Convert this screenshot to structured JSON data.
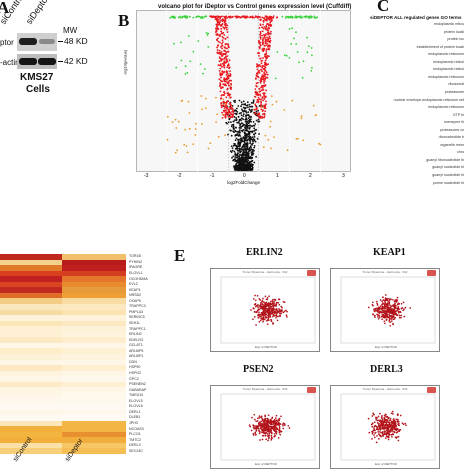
{
  "panel_a": {
    "letter": "A",
    "lanes": [
      "siControl",
      "siDeptor"
    ],
    "mw_label": "MW",
    "row_labels": [
      "ptor",
      "-actin"
    ],
    "mw_values": [
      "48 KD",
      "42 KD"
    ],
    "cell_line": "KMS27",
    "cell_word": "Cells"
  },
  "panel_b": {
    "letter": "B",
    "title": "volcano plot for iDeptor vs Control genes expression level (Cuffdiff)",
    "ylabel": "-log10(pvalue)",
    "xlabel": "log2FoldChange",
    "x_ticks": [
      "-3",
      "-2",
      "-1",
      "0",
      "1",
      "2",
      "3"
    ],
    "colors": {
      "black": "#111111",
      "red": "#e8191f",
      "green": "#3ad13a",
      "orange": "#e89b2a"
    }
  },
  "panel_c": {
    "letter": "C",
    "title": "siDEPTOR ALL regulated genes GO terms",
    "terms": [
      "endoplasmic reticu",
      "protein locali",
      "protein loc",
      "establishment of protein locali",
      "endoplasmic reticulum",
      "endoplasmic reticul",
      "endoplasmic reticul",
      "endoplasmic reticulum",
      "ribosomal",
      "proteasome",
      "nuclear envelope-endoplasmic reticulum net",
      "endoplasmic reticulum",
      "GTP bi",
      "coenzyme bi",
      "proteasome co",
      "ribonucleotide b",
      "organelle mem",
      "chro",
      "guanyl ribonucleotide bi",
      "guanyl nucleotide bi",
      "guanyl nucleotide bi",
      "purine nucleotide bi"
    ]
  },
  "panel_d": {
    "letter": "D",
    "x_labels": [
      "siControl",
      "siDeptor"
    ],
    "genes": [
      "TOR1B",
      "PYHIN2",
      "IPAGRE",
      "ELOVL1",
      "OCOHDMA",
      "EVL2",
      "KEAP1",
      "NRSD2",
      "CKAP5",
      "TRAPPC3",
      "PMPLA3",
      "SERINC5",
      "SEH1L",
      "TRAPPC1",
      "ERLIN2",
      "KDELR3",
      "GCLAT1",
      "ARL6IP5",
      "ARL6IP1",
      "DDN",
      "HSP90",
      "HSPG2",
      "GPC2",
      "PSENEN2",
      "GABARAP",
      "TMED10",
      "ELOVL5",
      "ELOVL6",
      "DERL1",
      "DLEB1",
      "JPH3",
      "NCOAS3",
      "PLCG1",
      "TMTC2",
      "DERL3",
      "SEC24C"
    ],
    "col_colors": {
      "left": [
        "#c0281e",
        "#f2d18a",
        "#e07a2a",
        "#d9401e",
        "#c02020",
        "#d94520",
        "#c02820",
        "#e06d27",
        "#f3cd86",
        "#fbe7bd",
        "#f6dca0",
        "#fdf3dd",
        "#fbe6b8",
        "#fdf0d3",
        "#fdf0d5",
        "#fde9c4",
        "#fef6e6",
        "#fdeec9",
        "#fdf2d8",
        "#fef6e6",
        "#fde8c1",
        "#fef3df",
        "#fef6e6",
        "#fdebc7",
        "#fef5e3",
        "#fef7e9",
        "#fef8ec",
        "#fefaf1",
        "#fef7e9",
        "#fefaf1",
        "#fde6b9",
        "#f2b03a",
        "#f3b440",
        "#f2b03a",
        "#fbe1a8",
        "#f8cf79"
      ],
      "right": [
        "#f1c06a",
        "#b81b1b",
        "#c0201d",
        "#d23e1f",
        "#e3762a",
        "#e98a2f",
        "#e69a39",
        "#ee9f36",
        "#f9dca4",
        "#fce9c2",
        "#fbe4b2",
        "#fef2da",
        "#fde9c1",
        "#fdf1d7",
        "#fef3dc",
        "#fdedcd",
        "#fef7e8",
        "#fef0d2",
        "#fef3de",
        "#fef7e8",
        "#fdefd0",
        "#fef6e4",
        "#fef8ec",
        "#fef0d3",
        "#fef6e7",
        "#fef8ed",
        "#fef9ef",
        "#fefaf3",
        "#fef8ec",
        "#fefaf3",
        "#f3b645",
        "#f3b645",
        "#e89030",
        "#f1ae3c",
        "#f7c765",
        "#f5be55"
      ]
    }
  },
  "panel_e": {
    "letter": "E",
    "plots": [
      {
        "title": "ERLIN2",
        "subtitle": "Tumor Myeloma - Harmonia - 542",
        "ylabel": "Exp of ERLIN2",
        "xlabel": "Exp of DEPTOR"
      },
      {
        "title": "KEAP1",
        "subtitle": "Tumor Myeloma - Harmonia - 542",
        "ylabel": "Exp of KEAP1",
        "xlabel": "Exp of DEPTOR"
      },
      {
        "title": "PSEN2",
        "subtitle": "Tumor Myeloma - Harmonia - 542",
        "ylabel": "Exp of PSEN2",
        "xlabel": "Exp of DEPTOR"
      },
      {
        "title": "DERL3",
        "subtitle": "Tumor Myeloma - Harmonia - 542",
        "ylabel": "Exp of DERL3",
        "xlabel": "Exp of DEPTOR"
      }
    ],
    "dot_color": "#b3141b"
  }
}
